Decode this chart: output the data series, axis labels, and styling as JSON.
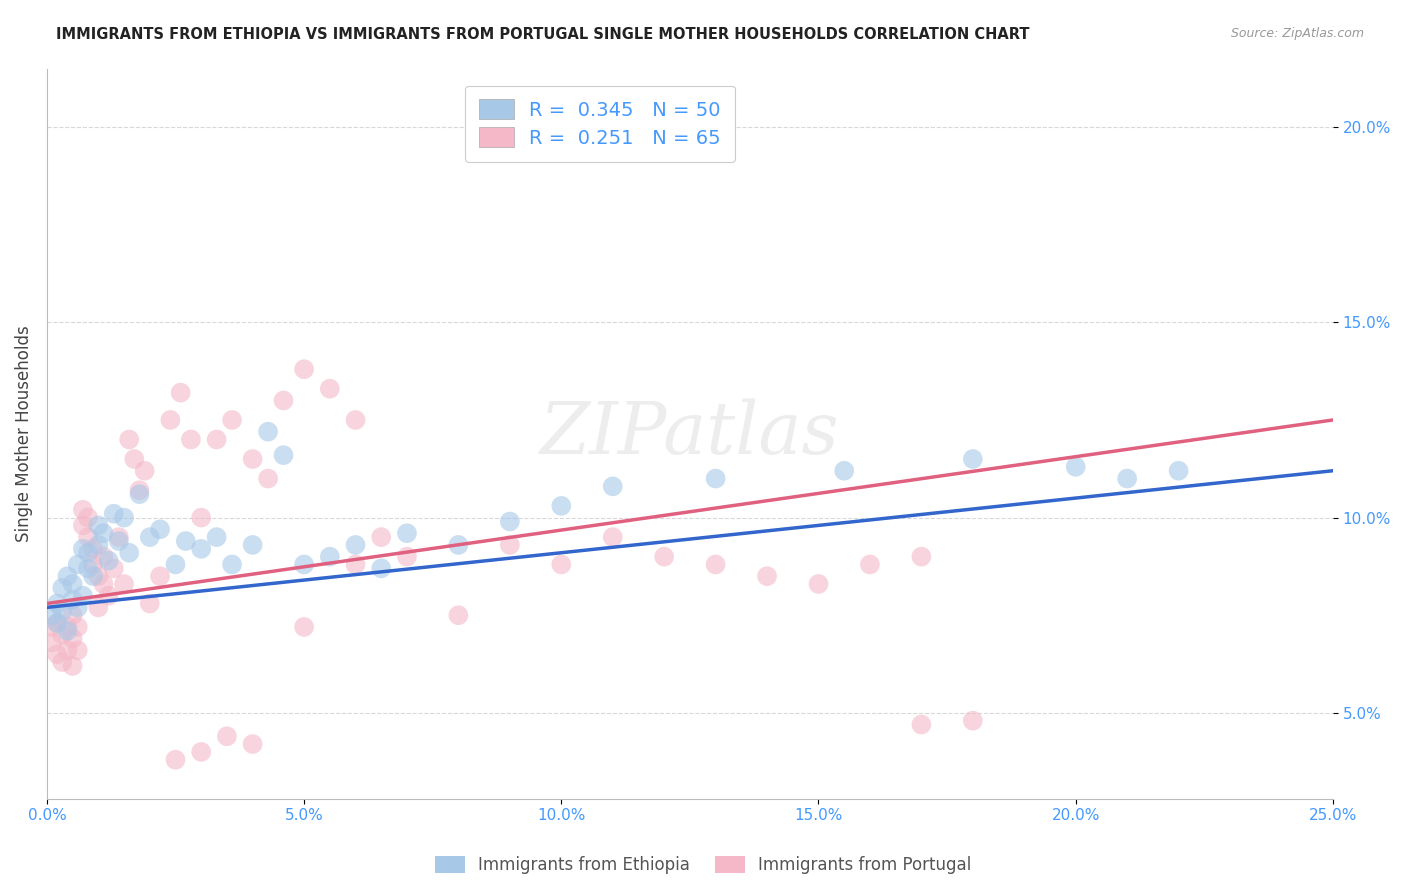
{
  "title": "IMMIGRANTS FROM ETHIOPIA VS IMMIGRANTS FROM PORTUGAL SINGLE MOTHER HOUSEHOLDS CORRELATION CHART",
  "source": "Source: ZipAtlas.com",
  "ylabel": "Single Mother Households",
  "xlim": [
    0.0,
    0.25
  ],
  "ylim": [
    0.028,
    0.215
  ],
  "xticks": [
    0.0,
    0.05,
    0.1,
    0.15,
    0.2,
    0.25
  ],
  "yticks": [
    0.05,
    0.1,
    0.15,
    0.2
  ],
  "ytick_labels": [
    "5.0%",
    "10.0%",
    "15.0%",
    "20.0%"
  ],
  "xtick_labels": [
    "0.0%",
    "5.0%",
    "10.0%",
    "15.0%",
    "20.0%",
    "25.0%"
  ],
  "ethiopia_R": 0.345,
  "ethiopia_N": 50,
  "portugal_R": 0.251,
  "portugal_N": 65,
  "ethiopia_color": "#a8c8e8",
  "portugal_color": "#f4b8c8",
  "ethiopia_line_color": "#3366cc",
  "portugal_line_color": "#e06080",
  "background_color": "#ffffff",
  "grid_color": "#d8d8d8",
  "title_color": "#222222",
  "axis_label_color": "#444444",
  "tick_color": "#4499ff",
  "watermark": "ZIPatlas",
  "bottom_legend_ethiopia": "Immigrants from Ethiopia",
  "bottom_legend_portugal": "Immigrants from Portugal",
  "ethiopia_x": [
    0.001,
    0.002,
    0.002,
    0.003,
    0.003,
    0.004,
    0.004,
    0.005,
    0.005,
    0.006,
    0.006,
    0.007,
    0.007,
    0.008,
    0.008,
    0.009,
    0.01,
    0.01,
    0.011,
    0.012,
    0.013,
    0.014,
    0.015,
    0.016,
    0.018,
    0.02,
    0.022,
    0.025,
    0.027,
    0.03,
    0.033,
    0.036,
    0.04,
    0.043,
    0.046,
    0.05,
    0.055,
    0.06,
    0.065,
    0.07,
    0.08,
    0.09,
    0.1,
    0.11,
    0.13,
    0.155,
    0.18,
    0.2,
    0.21,
    0.22
  ],
  "ethiopia_y": [
    0.075,
    0.078,
    0.073,
    0.082,
    0.076,
    0.071,
    0.085,
    0.079,
    0.083,
    0.088,
    0.077,
    0.092,
    0.08,
    0.087,
    0.091,
    0.085,
    0.093,
    0.098,
    0.096,
    0.089,
    0.101,
    0.094,
    0.1,
    0.091,
    0.106,
    0.095,
    0.097,
    0.088,
    0.094,
    0.092,
    0.095,
    0.088,
    0.093,
    0.122,
    0.116,
    0.088,
    0.09,
    0.093,
    0.087,
    0.096,
    0.093,
    0.099,
    0.103,
    0.108,
    0.11,
    0.112,
    0.115,
    0.113,
    0.11,
    0.112
  ],
  "portugal_x": [
    0.001,
    0.001,
    0.002,
    0.002,
    0.003,
    0.003,
    0.004,
    0.004,
    0.005,
    0.005,
    0.005,
    0.006,
    0.006,
    0.007,
    0.007,
    0.008,
    0.008,
    0.009,
    0.009,
    0.01,
    0.01,
    0.011,
    0.011,
    0.012,
    0.013,
    0.014,
    0.015,
    0.016,
    0.017,
    0.018,
    0.019,
    0.02,
    0.022,
    0.024,
    0.026,
    0.028,
    0.03,
    0.033,
    0.036,
    0.04,
    0.043,
    0.046,
    0.05,
    0.055,
    0.06,
    0.065,
    0.07,
    0.08,
    0.09,
    0.1,
    0.11,
    0.12,
    0.13,
    0.14,
    0.15,
    0.16,
    0.17,
    0.05,
    0.06,
    0.17,
    0.035,
    0.04,
    0.025,
    0.03,
    0.18
  ],
  "portugal_y": [
    0.072,
    0.068,
    0.073,
    0.065,
    0.07,
    0.063,
    0.072,
    0.066,
    0.075,
    0.069,
    0.062,
    0.072,
    0.066,
    0.102,
    0.098,
    0.095,
    0.1,
    0.088,
    0.092,
    0.085,
    0.077,
    0.09,
    0.083,
    0.08,
    0.087,
    0.095,
    0.083,
    0.12,
    0.115,
    0.107,
    0.112,
    0.078,
    0.085,
    0.125,
    0.132,
    0.12,
    0.1,
    0.12,
    0.125,
    0.115,
    0.11,
    0.13,
    0.138,
    0.133,
    0.125,
    0.095,
    0.09,
    0.075,
    0.093,
    0.088,
    0.095,
    0.09,
    0.088,
    0.085,
    0.083,
    0.088,
    0.09,
    0.072,
    0.088,
    0.047,
    0.044,
    0.042,
    0.038,
    0.04,
    0.048
  ],
  "eth_line_x0": 0.0,
  "eth_line_y0": 0.077,
  "eth_line_x1": 0.25,
  "eth_line_y1": 0.112,
  "por_line_x0": 0.0,
  "por_line_y0": 0.078,
  "por_line_x1": 0.25,
  "por_line_y1": 0.125
}
